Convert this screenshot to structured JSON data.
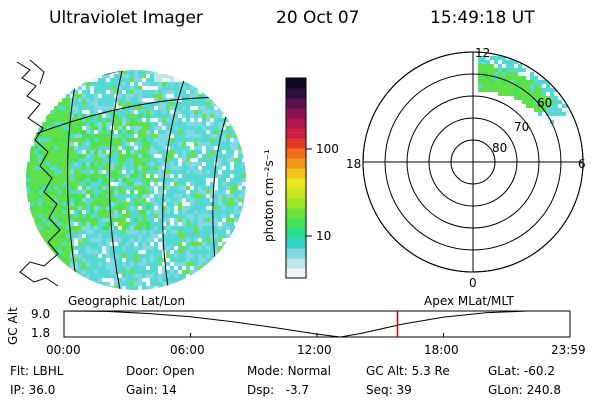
{
  "header": {
    "instrument": "Ultraviolet Imager",
    "date": "20 Oct 07",
    "time": "15:49:18 UT"
  },
  "colors": {
    "scale": [
      "#eef6fa",
      "#bfe6ee",
      "#7fd8e2",
      "#33d6c0",
      "#29df8e",
      "#44e25a",
      "#6ee23c",
      "#9be626",
      "#c8e622",
      "#ede51c",
      "#f4c41e",
      "#f5951a",
      "#f26a1c",
      "#e53a2a",
      "#d11e45",
      "#b0154e",
      "#8a1454",
      "#5a1250",
      "#2d0f3e",
      "#120a24"
    ],
    "aurora_green": "#5fe04a",
    "aurora_cyan": "#55d9d2",
    "cursor": "#cc0000"
  },
  "colorbar": {
    "unit_label": "photon cm⁻²s⁻¹",
    "ticks": [
      {
        "label": "100",
        "value": 100
      },
      {
        "label": "10",
        "value": 10
      }
    ]
  },
  "map_labels": {
    "left": "Geographic Lat/Lon",
    "right": "Apex MLat/MLT"
  },
  "polar": {
    "mlt_labels": [
      "12",
      "18",
      "6",
      "0"
    ],
    "lat_labels": [
      "60",
      "70",
      "80"
    ]
  },
  "timeline": {
    "axis_title": "GC Alt",
    "y_ticks": [
      "9.0",
      "1.8"
    ],
    "x_ticks": [
      "00:00",
      "06:00",
      "12:00",
      "18:00",
      "23:59"
    ],
    "cursor_time": "15:49"
  },
  "info": {
    "filter_label": "Flt:",
    "filter": "LBHL",
    "ip_label": "IP:",
    "ip": "36.0",
    "door_label": "Door:",
    "door": "Open",
    "gain_label": "Gain:",
    "gain": "14",
    "mode_label": "Mode:",
    "mode": "Normal",
    "dsp_label": "Dsp:",
    "dsp": "-3.7",
    "gcalt_label": "GC Alt:",
    "gcalt": "5.3 Re",
    "seq_label": "Seq:",
    "seq": "39",
    "glat_label": "GLat:",
    "glat": "-60.2",
    "glon_label": "GLon:",
    "glon": "240.8"
  }
}
